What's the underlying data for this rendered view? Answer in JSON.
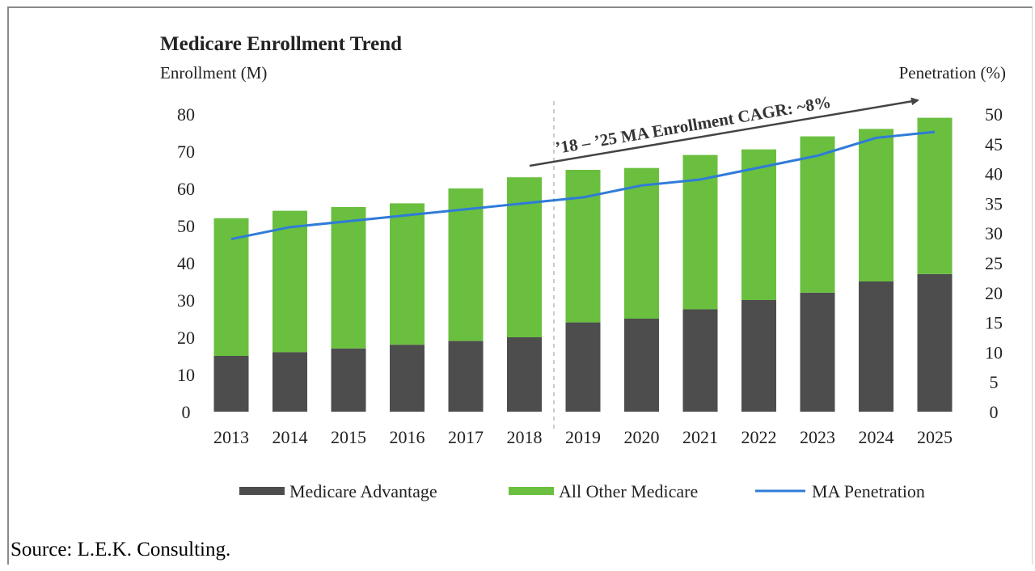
{
  "chart_data": {
    "type": "bar",
    "title": "Medicare Enrollment Trend",
    "ylabel_left": "Enrollment (M)",
    "ylabel_right": "Penetration (%)",
    "ylim_left": [
      0,
      80
    ],
    "ylim_right": [
      0,
      50
    ],
    "left_ticks": [
      "0",
      "10",
      "20",
      "30",
      "40",
      "50",
      "60",
      "70",
      "80"
    ],
    "right_ticks": [
      "0",
      "5",
      "10",
      "15",
      "20",
      "25",
      "30",
      "35",
      "40",
      "45",
      "50"
    ],
    "categories": [
      "2013",
      "2014",
      "2015",
      "2016",
      "2017",
      "2018",
      "2019",
      "2020",
      "2021",
      "2022",
      "2023",
      "2024",
      "2025"
    ],
    "stacked": true,
    "series": [
      {
        "name": "Medicare Advantage",
        "type": "bar",
        "axis": "left",
        "color": "#4d4d4d",
        "values": [
          15,
          16,
          17,
          18,
          19,
          20,
          24,
          25,
          27.5,
          30,
          32,
          35,
          37
        ]
      },
      {
        "name": "All Other Medicare",
        "type": "bar",
        "axis": "left",
        "color": "#6abf3f",
        "values": [
          37,
          38,
          38,
          38,
          41,
          43,
          41,
          40.5,
          41.5,
          40.5,
          42,
          41,
          42
        ]
      },
      {
        "name": "MA Penetration",
        "type": "line",
        "axis": "right",
        "color": "#2f7bd8",
        "values": [
          29,
          31,
          32,
          33,
          34,
          35,
          36,
          38,
          39,
          41,
          43,
          46,
          47
        ]
      }
    ],
    "annotation": {
      "text": "’18 – ’25 MA Enrollment CAGR: ~8%",
      "from_category": "2018",
      "to_category": "2025"
    },
    "legend_position": "bottom",
    "grid": false
  },
  "source": "Source: L.E.K. Consulting."
}
